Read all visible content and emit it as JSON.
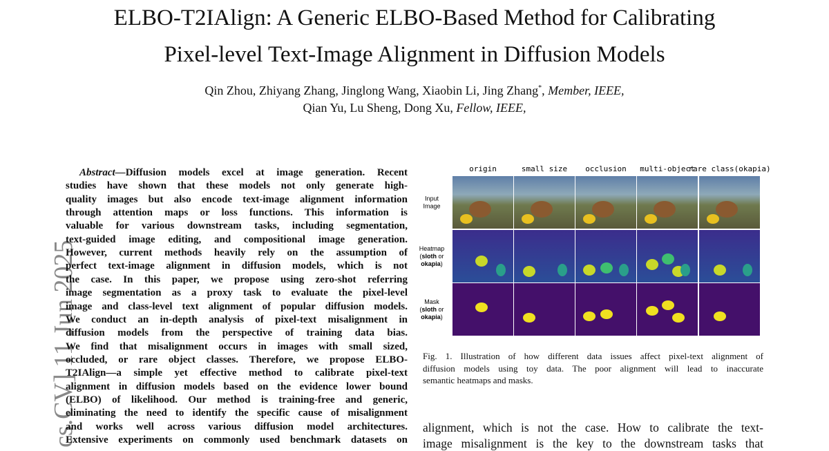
{
  "header": {
    "title_lines": [
      "ELBO-T2IAlign: A Generic ELBO-Based Method for Calibrating",
      "Pixel-level Text-Image Alignment in Diffusion Models"
    ],
    "authors_line1": "Qin Zhou, Zhiyang Zhang, Jinglong Wang, Xiaobin Li, Jing Zhang",
    "authors_mark": "*",
    "authors_sep": ", ",
    "authors_line1_role": "Member, IEEE,",
    "authors_line2": "Qian Yu, Lu Sheng, Dong Xu, ",
    "authors_line2_role": "Fellow, IEEE,"
  },
  "side_label": "cs.CV]  11 Jun 2025",
  "abstract": {
    "label": "Abstract—",
    "lines": [
      "Diffusion models excel at image generation. Recent",
      "studies have shown that these models not only generate high-",
      "quality images but also encode text-image alignment information",
      "through attention maps or loss functions. This information is",
      "valuable for various downstream tasks, including segmentation,",
      "text-guided image editing, and compositional image generation.",
      "However, current methods heavily rely on the assumption of",
      "perfect text-image alignment in diffusion models, which is not",
      "the case. In this paper, we propose using zero-shot referring",
      "image segmentation as a proxy task to evaluate the pixel-level",
      "image and class-level text alignment of popular diffusion models.",
      "We conduct an in-depth analysis of pixel-text misalignment in",
      "diffusion models from the perspective of training data bias.",
      "We find that misalignment occurs in images with small sized,",
      "occluded, or rare object classes. Therefore, we propose ELBO-",
      "T2IAlign—a simple yet effective method to calibrate pixel-text",
      "alignment in diffusion models based on the evidence lower bound",
      "(ELBO) of likelihood. Our method is training-free and generic,",
      "eliminating the need to identify the specific cause of misalignment",
      "and works well across various diffusion model architectures.",
      "Extensive experiments on commonly used benchmark datasets on"
    ]
  },
  "figure": {
    "columns": [
      "origin",
      "small size",
      "occlusion",
      "multi-object",
      "rare class(okapia)"
    ],
    "rows": [
      [
        [
          {
            "t": "Input"
          }
        ],
        [
          {
            "t": "Image"
          }
        ]
      ],
      [
        [
          {
            "t": "Heatmap"
          }
        ],
        [
          {
            "t": "("
          },
          {
            "t": "sloth",
            "bold": true
          },
          {
            "t": " or"
          }
        ],
        [
          {
            "t": "okapia",
            "bold": true
          },
          {
            "t": ")"
          }
        ]
      ],
      [
        [
          {
            "t": "Mask"
          }
        ],
        [
          {
            "t": "("
          },
          {
            "t": "sloth",
            "bold": true
          },
          {
            "t": " or"
          }
        ],
        [
          {
            "t": "okapia",
            "bold": true
          },
          {
            "t": ")"
          }
        ]
      ]
    ],
    "caption_lines": [
      "Fig. 1.  Illustration of how different data issues affect pixel-text alignment of",
      "diffusion models using toy data. The poor alignment will lead to inaccurate",
      "semantic heatmaps and masks."
    ]
  },
  "body_lines": [
    "alignment, which is not the case. How to calibrate the text-",
    "image misalignment is the key to the downstream tasks that"
  ]
}
